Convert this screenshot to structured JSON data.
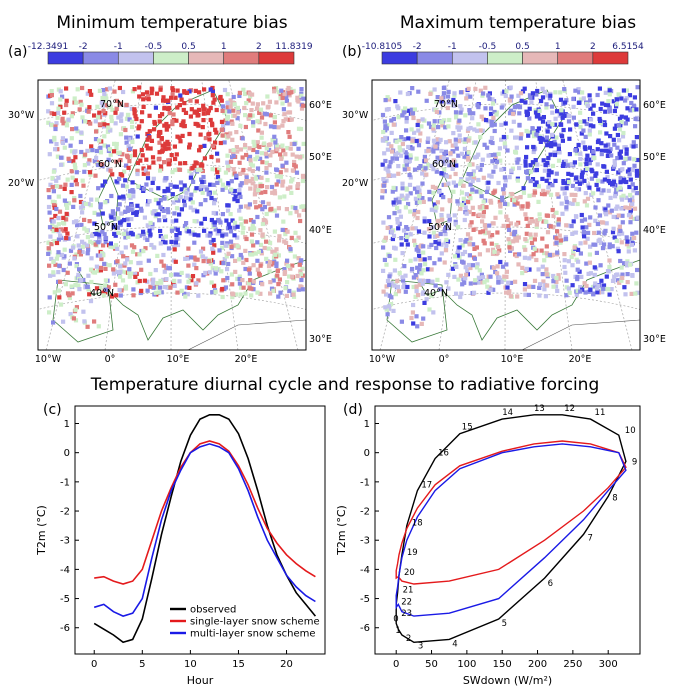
{
  "figure": {
    "title_top_left": "Minimum temperature bias",
    "title_top_right": "Maximum temperature bias",
    "title_bottom": "Temperature diurnal cycle and response to radiative forcing"
  },
  "colors": {
    "observed": "#000000",
    "single": "#e41a1c",
    "multi": "#1a1ae6",
    "bins": [
      "#3c3ce0",
      "#8a8ae6",
      "#c2c2ee",
      "#cdeec8",
      "#e6b8b8",
      "#e07c7c",
      "#dd3a3a"
    ]
  },
  "maps": [
    {
      "panel": "(a)",
      "colorbar_ticks": [
        "-12.3491",
        "-2",
        "-1",
        "-0.5",
        "0.5",
        "1",
        "2",
        "11.8319"
      ],
      "lat_labels": [
        "70°N",
        "60°N",
        "50°N",
        "40°N"
      ],
      "lon_labels_left": [
        "30°W",
        "20°W"
      ],
      "lon_labels_right": [
        "60°E",
        "50°E",
        "40°E",
        "30°E"
      ],
      "lon_labels_bottom": [
        "10°W",
        "0°",
        "10°E",
        "20°E"
      ]
    },
    {
      "panel": "(b)",
      "colorbar_ticks": [
        "-10.8105",
        "-2",
        "-1",
        "-0.5",
        "0.5",
        "1",
        "2",
        "6.5154"
      ],
      "lat_labels": [
        "70°N",
        "60°N",
        "50°N",
        "40°N"
      ],
      "lon_labels_left": [
        "30°W",
        "20°W"
      ],
      "lon_labels_right": [
        "60°E",
        "50°E",
        "40°E",
        "30°E"
      ],
      "lon_labels_bottom": [
        "10°W",
        "0°",
        "10°E",
        "20°E"
      ]
    }
  ],
  "chart_data": [
    {
      "panel": "(c)",
      "type": "line",
      "xlabel": "Hour",
      "ylabel": "T2m (°C)",
      "xlim": [
        -2,
        24
      ],
      "ylim": [
        -6.9,
        1.6
      ],
      "xticks": [
        "0",
        "5",
        "10",
        "15",
        "20"
      ],
      "yticks": [
        "1",
        "0",
        "-1",
        "-2",
        "-3",
        "-4",
        "-5",
        "-6"
      ],
      "x": [
        0,
        1,
        2,
        3,
        4,
        5,
        6,
        7,
        8,
        9,
        10,
        11,
        12,
        13,
        14,
        15,
        16,
        17,
        18,
        19,
        20,
        21,
        22,
        23
      ],
      "series": [
        {
          "name": "observed",
          "color_key": "observed",
          "values": [
            -5.85,
            -6.05,
            -6.25,
            -6.5,
            -6.4,
            -5.7,
            -4.3,
            -2.8,
            -1.5,
            -0.3,
            0.6,
            1.15,
            1.3,
            1.3,
            1.15,
            0.65,
            -0.2,
            -1.3,
            -2.5,
            -3.5,
            -4.2,
            -4.8,
            -5.2,
            -5.6
          ]
        },
        {
          "name": "single-layer snow scheme",
          "color_key": "single",
          "values": [
            -4.3,
            -4.25,
            -4.4,
            -4.5,
            -4.4,
            -4.0,
            -3.0,
            -2.0,
            -1.2,
            -0.5,
            0.0,
            0.3,
            0.4,
            0.3,
            0.05,
            -0.45,
            -1.1,
            -1.9,
            -2.6,
            -3.1,
            -3.5,
            -3.8,
            -4.05,
            -4.25
          ]
        },
        {
          "name": "multi-layer snow scheme",
          "color_key": "multi",
          "values": [
            -5.3,
            -5.2,
            -5.45,
            -5.6,
            -5.5,
            -5.0,
            -3.6,
            -2.3,
            -1.3,
            -0.6,
            0.0,
            0.2,
            0.3,
            0.2,
            0.0,
            -0.55,
            -1.3,
            -2.2,
            -3.0,
            -3.6,
            -4.2,
            -4.6,
            -4.9,
            -5.1
          ]
        }
      ],
      "legend": "lower-right"
    },
    {
      "panel": "(d)",
      "type": "line",
      "xlabel": "SWdown (W/m²)",
      "ylabel": "T2m (°C)",
      "xlim": [
        -30,
        345
      ],
      "ylim": [
        -6.9,
        1.6
      ],
      "xticks": [
        "0",
        "50",
        "100",
        "150",
        "200",
        "250",
        "300"
      ],
      "yticks": [
        "1",
        "0",
        "-1",
        "-2",
        "-3",
        "-4",
        "-5",
        "-6"
      ],
      "hour_labels": [
        "0",
        "1",
        "2",
        "3",
        "4",
        "5",
        "6",
        "7",
        "8",
        "9",
        "10",
        "11",
        "12",
        "13",
        "14",
        "15",
        "16",
        "17",
        "18",
        "19",
        "20",
        "21",
        "22",
        "23"
      ],
      "swdown": [
        0,
        3,
        8,
        25,
        75,
        145,
        210,
        265,
        300,
        325,
        315,
        275,
        235,
        195,
        150,
        90,
        55,
        30,
        15,
        8,
        4,
        2,
        0,
        0
      ],
      "series": [
        {
          "name": "observed",
          "color_key": "observed",
          "values": [
            -5.85,
            -6.05,
            -6.25,
            -6.5,
            -6.4,
            -5.7,
            -4.3,
            -2.8,
            -1.5,
            -0.3,
            0.6,
            1.15,
            1.3,
            1.3,
            1.15,
            0.65,
            -0.2,
            -1.3,
            -2.5,
            -3.5,
            -4.2,
            -4.8,
            -5.2,
            -5.6
          ]
        },
        {
          "name": "single-layer snow scheme",
          "color_key": "single",
          "values": [
            -4.3,
            -4.25,
            -4.4,
            -4.5,
            -4.4,
            -4.0,
            -3.0,
            -2.0,
            -1.2,
            -0.5,
            0.0,
            0.3,
            0.4,
            0.3,
            0.05,
            -0.45,
            -1.1,
            -1.9,
            -2.6,
            -3.1,
            -3.5,
            -3.8,
            -4.05,
            -4.25
          ]
        },
        {
          "name": "multi-layer snow scheme",
          "color_key": "multi",
          "values": [
            -5.3,
            -5.2,
            -5.45,
            -5.6,
            -5.5,
            -5.0,
            -3.6,
            -2.3,
            -1.3,
            -0.6,
            0.0,
            0.2,
            0.3,
            0.2,
            0.0,
            -0.55,
            -1.3,
            -2.2,
            -3.0,
            -3.6,
            -4.2,
            -4.6,
            -4.9,
            -5.1
          ]
        }
      ]
    }
  ]
}
